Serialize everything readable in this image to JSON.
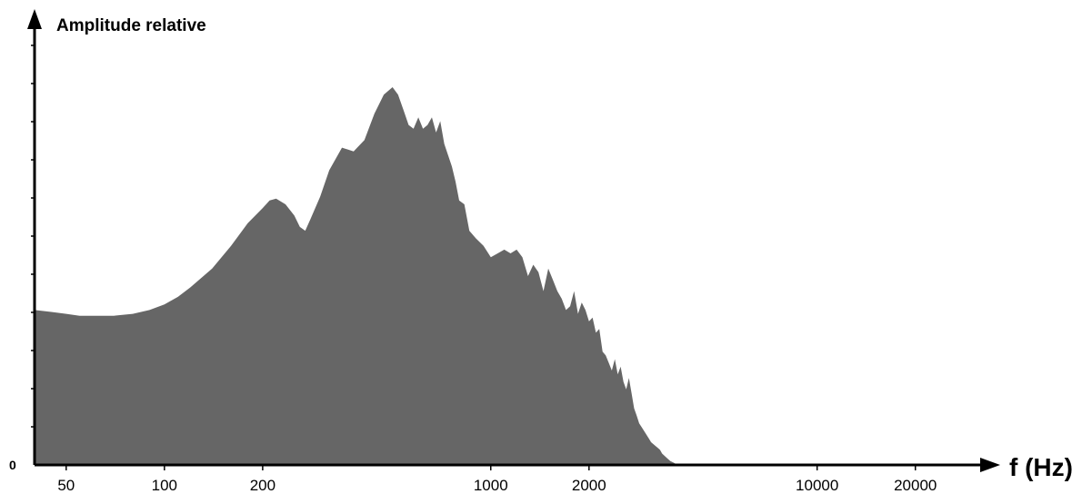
{
  "chart_data": {
    "type": "area",
    "title": "",
    "ylabel": "Amplitude relative",
    "xlabel": "f (Hz)",
    "x_scale": "log",
    "y_origin_label": "0",
    "xlim": [
      40,
      32000
    ],
    "ylim": [
      0,
      1.0
    ],
    "x_ticks": [
      {
        "value": 50,
        "label": "50"
      },
      {
        "value": 100,
        "label": "100"
      },
      {
        "value": 200,
        "label": "200"
      },
      {
        "value": 1000,
        "label": "1000"
      },
      {
        "value": 2000,
        "label": "2000"
      },
      {
        "value": 10000,
        "label": "10000"
      },
      {
        "value": 20000,
        "label": "20000"
      }
    ],
    "fill_color": "#666666",
    "series": [
      {
        "x": [
          40,
          45,
          50,
          55,
          60,
          65,
          70,
          80,
          90,
          100,
          110,
          120,
          140,
          160,
          180,
          200,
          210,
          220,
          235,
          250,
          260,
          270,
          280,
          300,
          320,
          350,
          380,
          410,
          440,
          470,
          500,
          520,
          540,
          560,
          580,
          600,
          620,
          640,
          660,
          680,
          700,
          720,
          740,
          760,
          780,
          800,
          830,
          860,
          900,
          950,
          1000,
          1050,
          1100,
          1150,
          1200,
          1250,
          1300,
          1350,
          1400,
          1450,
          1500,
          1550,
          1600,
          1650,
          1700,
          1750,
          1800,
          1850,
          1900,
          1950,
          2000,
          2050,
          2100,
          2150,
          2200,
          2250,
          2300,
          2350,
          2400,
          2450,
          2500,
          2550,
          2600,
          2650,
          2700,
          2750,
          2800,
          2850,
          2900,
          2950,
          3000,
          3050,
          3100,
          3150,
          3200,
          3250,
          3300,
          3350,
          3400,
          3450,
          3500,
          3550,
          3600,
          3650,
          3700,
          3800,
          4000
        ],
        "y": [
          0.41,
          0.405,
          0.4,
          0.395,
          0.395,
          0.395,
          0.395,
          0.4,
          0.41,
          0.425,
          0.445,
          0.47,
          0.52,
          0.58,
          0.64,
          0.68,
          0.7,
          0.705,
          0.69,
          0.66,
          0.63,
          0.62,
          0.65,
          0.71,
          0.78,
          0.84,
          0.83,
          0.86,
          0.93,
          0.98,
          1.0,
          0.98,
          0.94,
          0.9,
          0.89,
          0.92,
          0.89,
          0.9,
          0.92,
          0.88,
          0.91,
          0.85,
          0.82,
          0.79,
          0.75,
          0.7,
          0.69,
          0.62,
          0.6,
          0.58,
          0.55,
          0.56,
          0.57,
          0.56,
          0.57,
          0.55,
          0.5,
          0.53,
          0.51,
          0.46,
          0.52,
          0.49,
          0.46,
          0.44,
          0.41,
          0.42,
          0.46,
          0.4,
          0.43,
          0.41,
          0.38,
          0.39,
          0.35,
          0.36,
          0.3,
          0.29,
          0.27,
          0.25,
          0.28,
          0.24,
          0.26,
          0.22,
          0.2,
          0.23,
          0.19,
          0.15,
          0.13,
          0.11,
          0.1,
          0.09,
          0.08,
          0.07,
          0.06,
          0.055,
          0.05,
          0.045,
          0.04,
          0.03,
          0.025,
          0.02,
          0.015,
          0.01,
          0.008,
          0.005,
          0.002,
          0.0,
          0.0
        ]
      }
    ]
  }
}
